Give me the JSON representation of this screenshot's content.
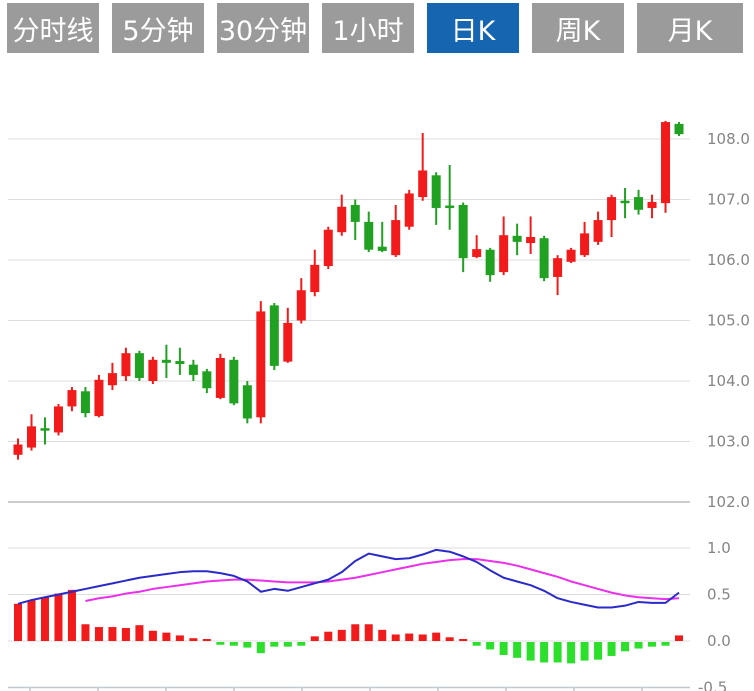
{
  "tab_bar": {
    "tabs": [
      {
        "label": "分时线",
        "name": "tab-timeshare-line",
        "active": false
      },
      {
        "label": "5分钟",
        "name": "tab-5min",
        "active": false
      },
      {
        "label": "30分钟",
        "name": "tab-30min",
        "active": false
      },
      {
        "label": "1小时",
        "name": "tab-1hour",
        "active": false
      },
      {
        "label": "日K",
        "name": "tab-daily-k",
        "active": true
      },
      {
        "label": "周K",
        "name": "tab-weekly-k",
        "active": false
      },
      {
        "label": "月K",
        "name": "tab-monthly-k",
        "active": false
      }
    ],
    "active_bg": "#1565b0",
    "inactive_bg": "#9b9b9b",
    "text_color": "#ffffff"
  },
  "colors": {
    "up": "#f11b1b",
    "down": "#21a121",
    "hist_up": "#f11b1b",
    "hist_down": "#2bdf2b",
    "dif_line": "#2a2ac8",
    "dea_line": "#ea30ea",
    "grid": "#dddddd",
    "grid_strong": "#cccccc",
    "axis": "#c2c8cd",
    "tick": "#c9d5de",
    "label": "#858585"
  },
  "axes": {
    "price_labels": [
      "108.0",
      "107.0",
      "106.0",
      "105.0",
      "104.0",
      "103.0",
      "102.0"
    ],
    "price_values": [
      108,
      107,
      106,
      105,
      104,
      103,
      102
    ],
    "macd_labels": [
      "1.0",
      "0.5",
      "0.0",
      "-0.5"
    ],
    "macd_values": [
      1.0,
      0.5,
      0.0,
      -0.5
    ],
    "x_tick_count": 10
  },
  "chart_data": {
    "type": "candlestick",
    "title": "",
    "convention": "red = up candle, green = down candle (Chinese market convention)",
    "panels": [
      {
        "name": "price",
        "ylim": [
          101.6,
          108.8
        ],
        "gridlines": [
          108,
          107,
          106,
          105,
          104,
          103,
          102
        ],
        "grid": true,
        "axis_side": "right"
      },
      {
        "name": "macd",
        "ylim": [
          -0.55,
          1.05
        ],
        "gridlines": [
          1.0,
          0.5,
          0.0,
          -0.5
        ],
        "grid": true,
        "axis_side": "right"
      }
    ],
    "candles_ohlc": [
      [
        102.78,
        103.05,
        102.7,
        102.95
      ],
      [
        102.9,
        103.45,
        102.85,
        103.25
      ],
      [
        103.22,
        103.4,
        102.95,
        103.18
      ],
      [
        103.15,
        103.62,
        103.1,
        103.58
      ],
      [
        103.58,
        103.9,
        103.5,
        103.85
      ],
      [
        103.83,
        103.9,
        103.4,
        103.47
      ],
      [
        103.42,
        104.1,
        103.4,
        104.02
      ],
      [
        103.93,
        104.3,
        103.85,
        104.13
      ],
      [
        104.08,
        104.55,
        104.0,
        104.46
      ],
      [
        104.46,
        104.5,
        104.0,
        104.05
      ],
      [
        104.0,
        104.4,
        103.95,
        104.35
      ],
      [
        104.35,
        104.6,
        104.05,
        104.3
      ],
      [
        104.33,
        104.55,
        104.1,
        104.28
      ],
      [
        104.27,
        104.35,
        104.0,
        104.1
      ],
      [
        104.16,
        104.2,
        103.8,
        103.88
      ],
      [
        103.72,
        104.45,
        103.7,
        104.38
      ],
      [
        104.35,
        104.4,
        103.6,
        103.63
      ],
      [
        103.93,
        104.0,
        103.3,
        103.38
      ],
      [
        103.4,
        105.32,
        103.3,
        105.15
      ],
      [
        105.25,
        105.29,
        104.18,
        104.25
      ],
      [
        104.32,
        105.21,
        104.3,
        104.96
      ],
      [
        105.0,
        105.7,
        104.95,
        105.5
      ],
      [
        105.47,
        106.17,
        105.4,
        105.92
      ],
      [
        105.9,
        106.55,
        105.85,
        106.5
      ],
      [
        106.46,
        107.08,
        106.4,
        106.88
      ],
      [
        106.91,
        107.0,
        106.33,
        106.63
      ],
      [
        106.63,
        106.8,
        106.13,
        106.17
      ],
      [
        106.22,
        106.63,
        106.13,
        106.15
      ],
      [
        106.08,
        106.91,
        106.05,
        106.66
      ],
      [
        106.55,
        107.16,
        106.5,
        107.1
      ],
      [
        107.04,
        108.1,
        106.98,
        107.48
      ],
      [
        107.4,
        107.45,
        106.58,
        106.86
      ],
      [
        106.9,
        107.57,
        106.5,
        106.86
      ],
      [
        106.91,
        106.95,
        105.8,
        106.03
      ],
      [
        106.05,
        106.41,
        106.03,
        106.18
      ],
      [
        106.17,
        106.2,
        105.64,
        105.75
      ],
      [
        105.8,
        106.72,
        105.75,
        106.41
      ],
      [
        106.4,
        106.6,
        106.08,
        106.3
      ],
      [
        106.28,
        106.72,
        106.1,
        106.38
      ],
      [
        106.36,
        106.4,
        105.65,
        105.7
      ],
      [
        105.72,
        106.08,
        105.42,
        106.03
      ],
      [
        105.97,
        106.2,
        105.95,
        106.17
      ],
      [
        106.08,
        106.63,
        106.05,
        106.44
      ],
      [
        106.3,
        106.8,
        106.25,
        106.66
      ],
      [
        106.66,
        107.08,
        106.38,
        107.04
      ],
      [
        106.98,
        107.19,
        106.69,
        106.94
      ],
      [
        107.04,
        107.16,
        106.75,
        106.83
      ],
      [
        106.86,
        107.08,
        106.69,
        106.96
      ],
      [
        106.94,
        108.3,
        106.78,
        108.28
      ],
      [
        108.25,
        108.28,
        108.05,
        108.08
      ]
    ],
    "macd": {
      "dif": [
        0.4,
        0.44,
        0.47,
        0.5,
        0.53,
        0.56,
        0.59,
        0.62,
        0.65,
        0.68,
        0.7,
        0.72,
        0.74,
        0.75,
        0.75,
        0.73,
        0.7,
        0.64,
        0.53,
        0.56,
        0.54,
        0.58,
        0.62,
        0.66,
        0.74,
        0.86,
        0.94,
        0.91,
        0.88,
        0.89,
        0.93,
        0.98,
        0.96,
        0.91,
        0.85,
        0.76,
        0.68,
        0.64,
        0.6,
        0.54,
        0.46,
        0.42,
        0.39,
        0.36,
        0.36,
        0.38,
        0.42,
        0.41,
        0.41,
        0.52
      ],
      "dea_start_index": 5,
      "dea": [
        0.43,
        0.46,
        0.48,
        0.51,
        0.53,
        0.56,
        0.58,
        0.6,
        0.62,
        0.64,
        0.65,
        0.66,
        0.66,
        0.65,
        0.64,
        0.63,
        0.63,
        0.63,
        0.64,
        0.66,
        0.68,
        0.71,
        0.74,
        0.77,
        0.8,
        0.83,
        0.85,
        0.87,
        0.88,
        0.88,
        0.86,
        0.84,
        0.81,
        0.77,
        0.73,
        0.69,
        0.64,
        0.6,
        0.56,
        0.52,
        0.49,
        0.47,
        0.46,
        0.45,
        0.46
      ],
      "histogram": [
        0.4,
        0.44,
        0.47,
        0.51,
        0.55,
        0.18,
        0.15,
        0.15,
        0.14,
        0.17,
        0.11,
        0.09,
        0.06,
        0.03,
        0.02,
        -0.03,
        -0.04,
        -0.06,
        -0.12,
        -0.05,
        -0.05,
        -0.04,
        0.05,
        0.1,
        0.12,
        0.18,
        0.18,
        0.12,
        0.07,
        0.08,
        0.07,
        0.09,
        0.04,
        0.02,
        -0.04,
        -0.08,
        -0.14,
        -0.17,
        -0.2,
        -0.22,
        -0.22,
        -0.23,
        -0.2,
        -0.19,
        -0.15,
        -0.1,
        -0.07,
        -0.05,
        -0.04,
        0.06
      ]
    },
    "legend_position": "none",
    "xlabel": "",
    "ylabel": ""
  }
}
